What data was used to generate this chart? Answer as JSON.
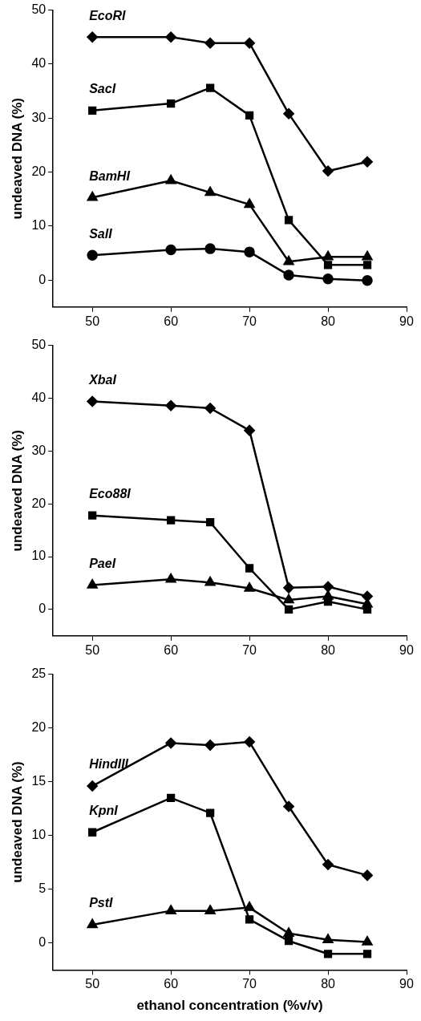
{
  "chart_data": [
    {
      "type": "line",
      "ylabel": "undeaved DNA (%)",
      "x": [
        50,
        60,
        65,
        70,
        75,
        80,
        85
      ],
      "xlim": [
        45,
        90
      ],
      "xticks": [
        50,
        60,
        70,
        80,
        90
      ],
      "ylim": [
        -5,
        50
      ],
      "yticks": [
        0,
        10,
        20,
        30,
        40,
        50
      ],
      "grid": false,
      "legend": false,
      "line_style": "solid",
      "series": [
        {
          "name": "EcoRI",
          "color": "#000000",
          "marker": "diamond",
          "values": [
            45,
            45,
            43.9,
            43.9,
            30.8,
            20.2,
            21.9
          ]
        },
        {
          "name": "SacI",
          "color": "#000000",
          "marker": "square",
          "values": [
            31.4,
            32.7,
            35.6,
            30.5,
            11.1,
            2.8,
            2.8
          ]
        },
        {
          "name": "BamHI",
          "color": "#000000",
          "marker": "triangle",
          "values": [
            15.3,
            18.4,
            16.2,
            14.0,
            3.4,
            4.3,
            4.3
          ]
        },
        {
          "name": "SalI",
          "color": "#000000",
          "marker": "circle",
          "values": [
            4.6,
            5.6,
            5.8,
            5.2,
            0.9,
            0.2,
            -0.1
          ]
        }
      ]
    },
    {
      "type": "line",
      "ylabel": "undeaved DNA (%)",
      "x": [
        50,
        60,
        65,
        70,
        75,
        80,
        85
      ],
      "xlim": [
        45,
        90
      ],
      "xticks": [
        50,
        60,
        70,
        80,
        90
      ],
      "ylim": [
        -5,
        50
      ],
      "yticks": [
        0,
        10,
        20,
        30,
        40,
        50
      ],
      "grid": false,
      "legend": false,
      "line_style": "solid",
      "series": [
        {
          "name": "XbaI",
          "color": "#000000",
          "marker": "diamond",
          "values": [
            39.4,
            38.6,
            38.1,
            33.9,
            4.1,
            4.3,
            2.5
          ]
        },
        {
          "name": "Eco88I",
          "color": "#000000",
          "marker": "square",
          "values": [
            17.8,
            16.9,
            16.5,
            7.8,
            0,
            1.5,
            0
          ]
        },
        {
          "name": "PaeI",
          "color": "#000000",
          "marker": "triangle",
          "values": [
            4.6,
            5.7,
            5.1,
            4.0,
            1.8,
            2.5,
            1.0
          ]
        }
      ]
    },
    {
      "type": "line",
      "ylabel": "undeaved DNA (%)",
      "xlabel": "ethanol concentration (%v/v)",
      "x": [
        50,
        60,
        65,
        70,
        75,
        80,
        85
      ],
      "xlim": [
        45,
        90
      ],
      "xticks": [
        50,
        60,
        70,
        80,
        90
      ],
      "ylim": [
        -2.5,
        25
      ],
      "yticks": [
        0,
        5,
        10,
        15,
        20,
        25
      ],
      "grid": false,
      "legend": false,
      "line_style": "solid",
      "series": [
        {
          "name": "HindIII",
          "color": "#000000",
          "marker": "diamond",
          "values": [
            14.6,
            18.6,
            18.4,
            18.7,
            12.7,
            7.3,
            6.3
          ]
        },
        {
          "name": "KpnI",
          "color": "#000000",
          "marker": "square",
          "values": [
            10.3,
            13.5,
            12.1,
            2.2,
            0.2,
            -1.0,
            -1.0
          ]
        },
        {
          "name": "PstI",
          "color": "#000000",
          "marker": "triangle",
          "values": [
            1.7,
            3.0,
            3.0,
            3.3,
            0.9,
            0.3,
            0.1
          ]
        }
      ]
    }
  ]
}
